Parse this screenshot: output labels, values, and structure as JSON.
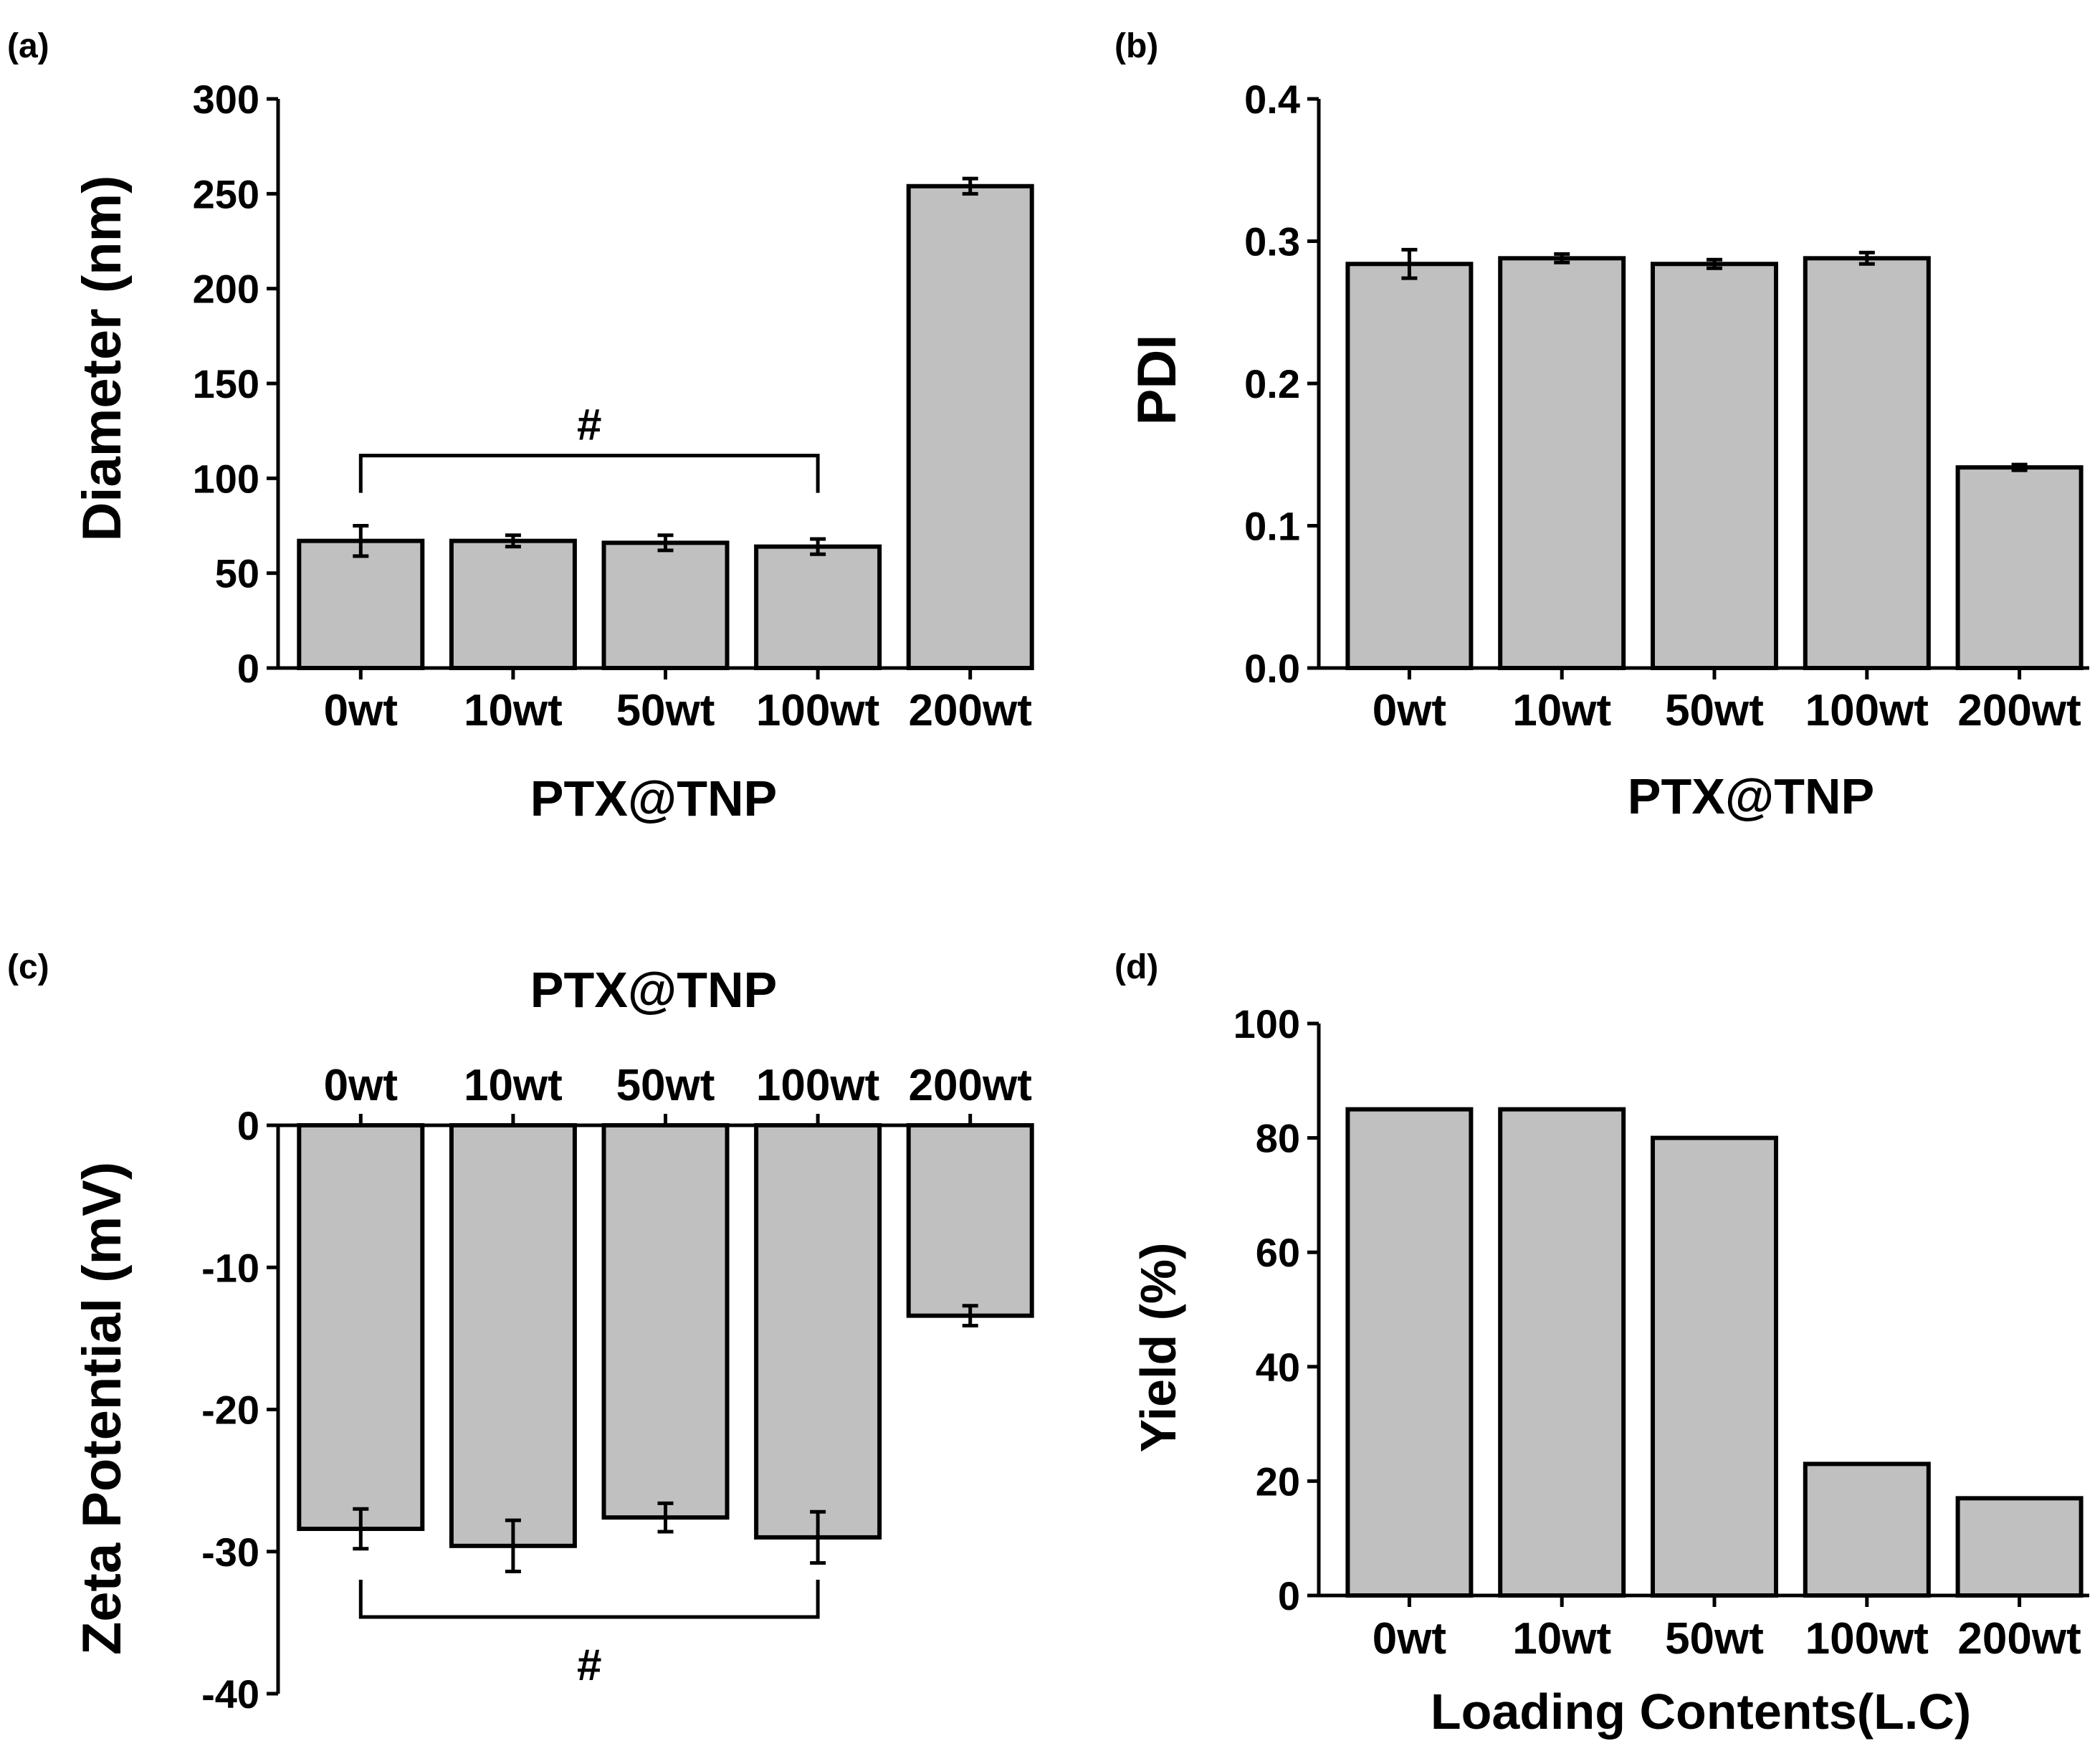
{
  "colors": {
    "bar_fill": "#c0c0c0",
    "stroke": "#000000",
    "background": "#ffffff"
  },
  "chart_data": [
    {
      "id": "a",
      "panel_label": "(a)",
      "type": "bar",
      "title": "",
      "xlabel": "PTX@TNP",
      "ylabel": "Diameter (nm)",
      "categories": [
        "0wt",
        "10wt",
        "50wt",
        "100wt",
        "200wt"
      ],
      "values": [
        67,
        67,
        66,
        64,
        254
      ],
      "errors": [
        8,
        3,
        4,
        4,
        4
      ],
      "ylim": [
        0,
        300
      ],
      "yticks": [
        0,
        50,
        100,
        150,
        200,
        250,
        300
      ],
      "ytick_labels": [
        "0",
        "50",
        "100",
        "150",
        "200",
        "250",
        "300"
      ],
      "significance": {
        "label": "#",
        "from": "0wt",
        "to": "100wt",
        "level": 112
      }
    },
    {
      "id": "b",
      "panel_label": "(b)",
      "type": "bar",
      "title": "",
      "xlabel": "PTX@TNP",
      "ylabel": "PDI",
      "categories": [
        "0wt",
        "10wt",
        "50wt",
        "100wt",
        "200wt"
      ],
      "values": [
        0.284,
        0.288,
        0.284,
        0.288,
        0.141
      ],
      "errors": [
        0.01,
        0.003,
        0.003,
        0.004,
        0.002
      ],
      "ylim": [
        0,
        0.4
      ],
      "yticks": [
        0,
        0.1,
        0.2,
        0.3,
        0.4
      ],
      "ytick_labels": [
        "0.0",
        "0.1",
        "0.2",
        "0.3",
        "0.4"
      ]
    },
    {
      "id": "c",
      "panel_label": "(c)",
      "type": "bar",
      "title": "PTX@TNP",
      "xlabel": "",
      "ylabel": "Zeta Potential (mV)",
      "categories": [
        "0wt",
        "10wt",
        "50wt",
        "100wt",
        "200wt"
      ],
      "values": [
        -28.4,
        -29.6,
        -27.6,
        -29.0,
        -13.4
      ],
      "errors": [
        1.4,
        1.8,
        1.0,
        1.8,
        0.7
      ],
      "ylim": [
        -40,
        0
      ],
      "yticks": [
        -40,
        -30,
        -20,
        -10,
        0
      ],
      "ytick_labels": [
        "-40",
        "-30",
        "-20",
        "-10",
        "0"
      ],
      "significance": {
        "label": "#",
        "from": "0wt",
        "to": "100wt",
        "level": -34.6
      }
    },
    {
      "id": "d",
      "panel_label": "(d)",
      "type": "bar",
      "title": "",
      "xlabel": "Loading Contents(L.C)",
      "ylabel": "Yield (%)",
      "categories": [
        "0wt",
        "10wt",
        "50wt",
        "100wt",
        "200wt"
      ],
      "values": [
        85,
        85,
        80,
        23,
        17
      ],
      "ylim": [
        0,
        100
      ],
      "yticks": [
        0,
        20,
        40,
        60,
        80,
        100
      ],
      "ytick_labels": [
        "0",
        "20",
        "40",
        "60",
        "80",
        "100"
      ]
    }
  ]
}
